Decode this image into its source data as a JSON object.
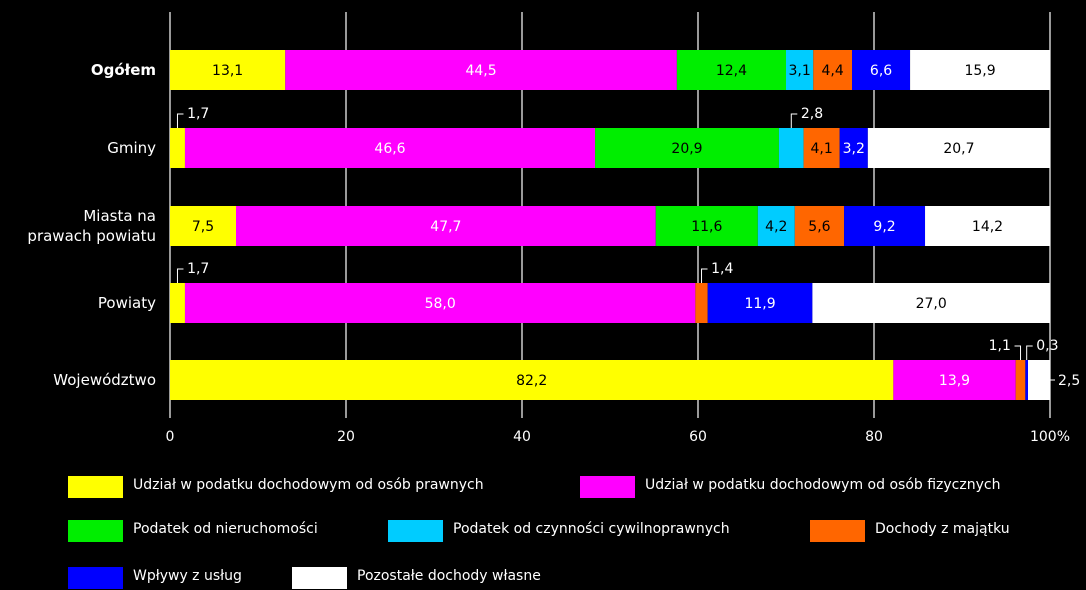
{
  "chart_data": {
    "type": "stacked-barh",
    "categories": [
      "Ogółem",
      "Gminy",
      "Miasta na\nprawach powiatu",
      "Powiaty",
      "Województwo"
    ],
    "series": [
      {
        "name": "Udział w podatku dochodowym od osób prawnych",
        "color": "#ffff00",
        "values": [
          13.1,
          1.7,
          7.5,
          1.7,
          82.2
        ],
        "value_labels": [
          "13,1",
          "1,7",
          "7,5",
          "1,7",
          "82,2"
        ]
      },
      {
        "name": "Udział w podatku dochodowym od osób fizycznych",
        "color": "#ff00ff",
        "values": [
          44.5,
          46.6,
          47.7,
          58.0,
          13.9
        ],
        "value_labels": [
          "44,5",
          "46,6",
          "47,7",
          "58,0",
          "13,9"
        ]
      },
      {
        "name": "Podatek od nieruchomości",
        "color": "#00ee00",
        "values": [
          12.4,
          20.9,
          11.6,
          null,
          null
        ],
        "value_labels": [
          "12,4",
          "20,9",
          "11,6",
          null,
          null
        ]
      },
      {
        "name": "Podatek od czynności cywilnoprawnych",
        "color": "#00ccff",
        "values": [
          3.1,
          2.8,
          4.2,
          null,
          null
        ],
        "value_labels": [
          "3,1",
          "2,8",
          "4,2",
          null,
          null
        ]
      },
      {
        "name": "Dochody z majątku",
        "color": "#ff6600",
        "values": [
          4.4,
          4.1,
          5.6,
          1.4,
          1.1
        ],
        "value_labels": [
          "4,4",
          "4,1",
          "5,6",
          "1,4",
          "1,1"
        ]
      },
      {
        "name": "Wpływy z usług",
        "color": "#0000ff",
        "values": [
          6.6,
          3.2,
          9.2,
          11.9,
          0.3
        ],
        "value_labels": [
          "6,6",
          "3,2",
          "9,2",
          "11,9",
          "0,3"
        ]
      },
      {
        "name": "Pozostałe dochody własne",
        "color": "#ffffff",
        "values": [
          15.9,
          20.7,
          14.2,
          27.0,
          2.5
        ],
        "value_labels": [
          "15,9",
          "20,7",
          "14,2",
          "27,0",
          "2,5"
        ]
      }
    ],
    "xlim": [
      0,
      100
    ],
    "xticks": [
      0,
      20,
      40,
      60,
      80,
      {
        "value": 100,
        "label": "100%"
      }
    ],
    "grid": true
  }
}
